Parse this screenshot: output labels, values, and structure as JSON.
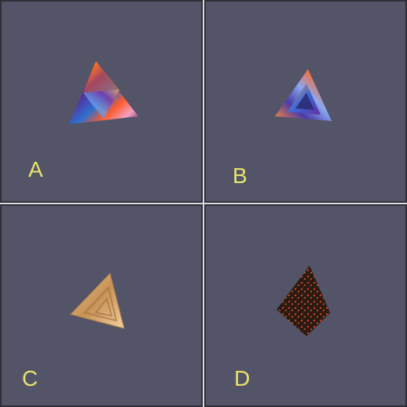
{
  "panels": [
    {
      "id": "A",
      "label": "A",
      "texture": "purple-orange-gradient"
    },
    {
      "id": "B",
      "label": "B",
      "texture": "purple-orange-gradient"
    },
    {
      "id": "C",
      "label": "C",
      "texture": "wood"
    },
    {
      "id": "D",
      "label": "D",
      "texture": "lava"
    }
  ],
  "colors": {
    "panel_bg": "#545469",
    "panel_border": "#2f2f38",
    "separator": "#d9d9dc",
    "label": "#e6e36a"
  }
}
